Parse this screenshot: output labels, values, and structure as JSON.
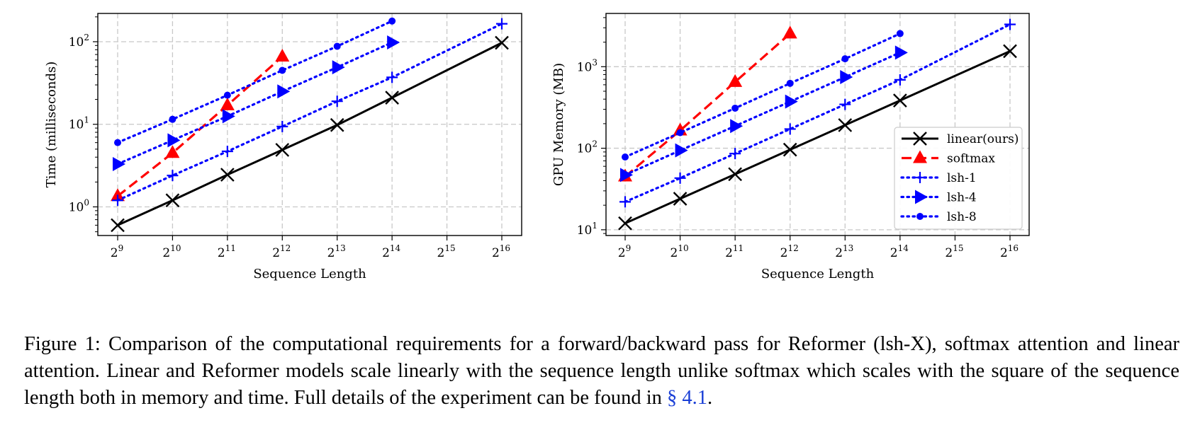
{
  "charts": [
    {
      "type": "line",
      "x": [
        9,
        10,
        11,
        12,
        13,
        14,
        15,
        16
      ],
      "x_tick_labels": [
        "9",
        "10",
        "11",
        "12",
        "13",
        "14",
        "15",
        "16"
      ],
      "x_tick_base": "2",
      "xlabel": "Sequence Length",
      "ylabel": "Time (milliseconds)",
      "y_scale": "log",
      "y_ticks": [
        {
          "base": "10",
          "exp": "0",
          "value": 1
        },
        {
          "base": "10",
          "exp": "1",
          "value": 10
        },
        {
          "base": "10",
          "exp": "2",
          "value": 100
        }
      ],
      "ylim": [
        0.45,
        220
      ],
      "grid": true,
      "legend": null,
      "series": [
        {
          "name": "linear(ours)",
          "x": [
            9,
            10,
            11,
            12,
            13,
            14,
            16
          ],
          "values": [
            0.6,
            1.2,
            2.45,
            4.9,
            9.8,
            21,
            97
          ]
        },
        {
          "name": "softmax",
          "x": [
            9,
            10,
            11,
            12
          ],
          "values": [
            1.35,
            4.5,
            17,
            66
          ]
        },
        {
          "name": "lsh-1",
          "x": [
            9,
            10,
            11,
            12,
            13,
            14,
            16
          ],
          "values": [
            1.2,
            2.4,
            4.7,
            9.4,
            19,
            37,
            165
          ]
        },
        {
          "name": "lsh-4",
          "x": [
            9,
            10,
            11,
            12,
            13,
            14
          ],
          "values": [
            3.3,
            6.4,
            12.5,
            25,
            49,
            98
          ]
        },
        {
          "name": "lsh-8",
          "x": [
            9,
            10,
            11,
            12,
            13,
            14
          ],
          "values": [
            6.0,
            11.5,
            22.5,
            45,
            88,
            178
          ]
        }
      ]
    },
    {
      "type": "line",
      "x": [
        9,
        10,
        11,
        12,
        13,
        14,
        15,
        16
      ],
      "x_tick_labels": [
        "9",
        "10",
        "11",
        "12",
        "13",
        "14",
        "15",
        "16"
      ],
      "x_tick_base": "2",
      "xlabel": "Sequence Length",
      "ylabel": "GPU Memory (MB)",
      "y_scale": "log",
      "y_ticks": [
        {
          "base": "10",
          "exp": "1",
          "value": 10
        },
        {
          "base": "10",
          "exp": "2",
          "value": 100
        },
        {
          "base": "10",
          "exp": "3",
          "value": 1000
        }
      ],
      "ylim": [
        8.5,
        4500
      ],
      "grid": true,
      "legend": "lower-right",
      "series": [
        {
          "name": "linear(ours)",
          "x": [
            9,
            10,
            11,
            12,
            13,
            14,
            16
          ],
          "values": [
            12,
            24,
            48,
            96,
            192,
            385,
            1550
          ]
        },
        {
          "name": "softmax",
          "x": [
            9,
            10,
            11,
            12
          ],
          "values": [
            45,
            165,
            650,
            2550
          ]
        },
        {
          "name": "lsh-1",
          "x": [
            9,
            10,
            11,
            12,
            13,
            14,
            16
          ],
          "values": [
            22,
            43,
            86,
            172,
            345,
            690,
            3300
          ]
        },
        {
          "name": "lsh-4",
          "x": [
            9,
            10,
            11,
            12,
            13,
            14
          ],
          "values": [
            47,
            94,
            187,
            373,
            745,
            1490
          ]
        },
        {
          "name": "lsh-8",
          "x": [
            9,
            10,
            11,
            12,
            13,
            14
          ],
          "values": [
            78,
            155,
            310,
            625,
            1250,
            2550
          ]
        }
      ]
    }
  ],
  "series_styles": {
    "linear(ours)": {
      "color": "#000000",
      "marker": "x",
      "dash": "solid"
    },
    "softmax": {
      "color": "#ff0000",
      "marker": "triangle-up",
      "dash": "dashed"
    },
    "lsh-1": {
      "color": "#0000ff",
      "marker": "plus",
      "dash": "dotted"
    },
    "lsh-4": {
      "color": "#0000ff",
      "marker": "triangle-right",
      "dash": "dotted"
    },
    "lsh-8": {
      "color": "#0000ff",
      "marker": "circle",
      "dash": "dotted"
    }
  },
  "caption": {
    "text": "Figure 1: Comparison of the computational requirements for a forward/backward pass for Reformer (lsh-X), softmax attention and linear attention. Linear and Reformer models scale linearly with the sequence length unlike softmax which scales with the square of the sequence length both in memory and time. Full details of the experiment can be found in ",
    "ref": "§ 4.1",
    "end": "."
  }
}
